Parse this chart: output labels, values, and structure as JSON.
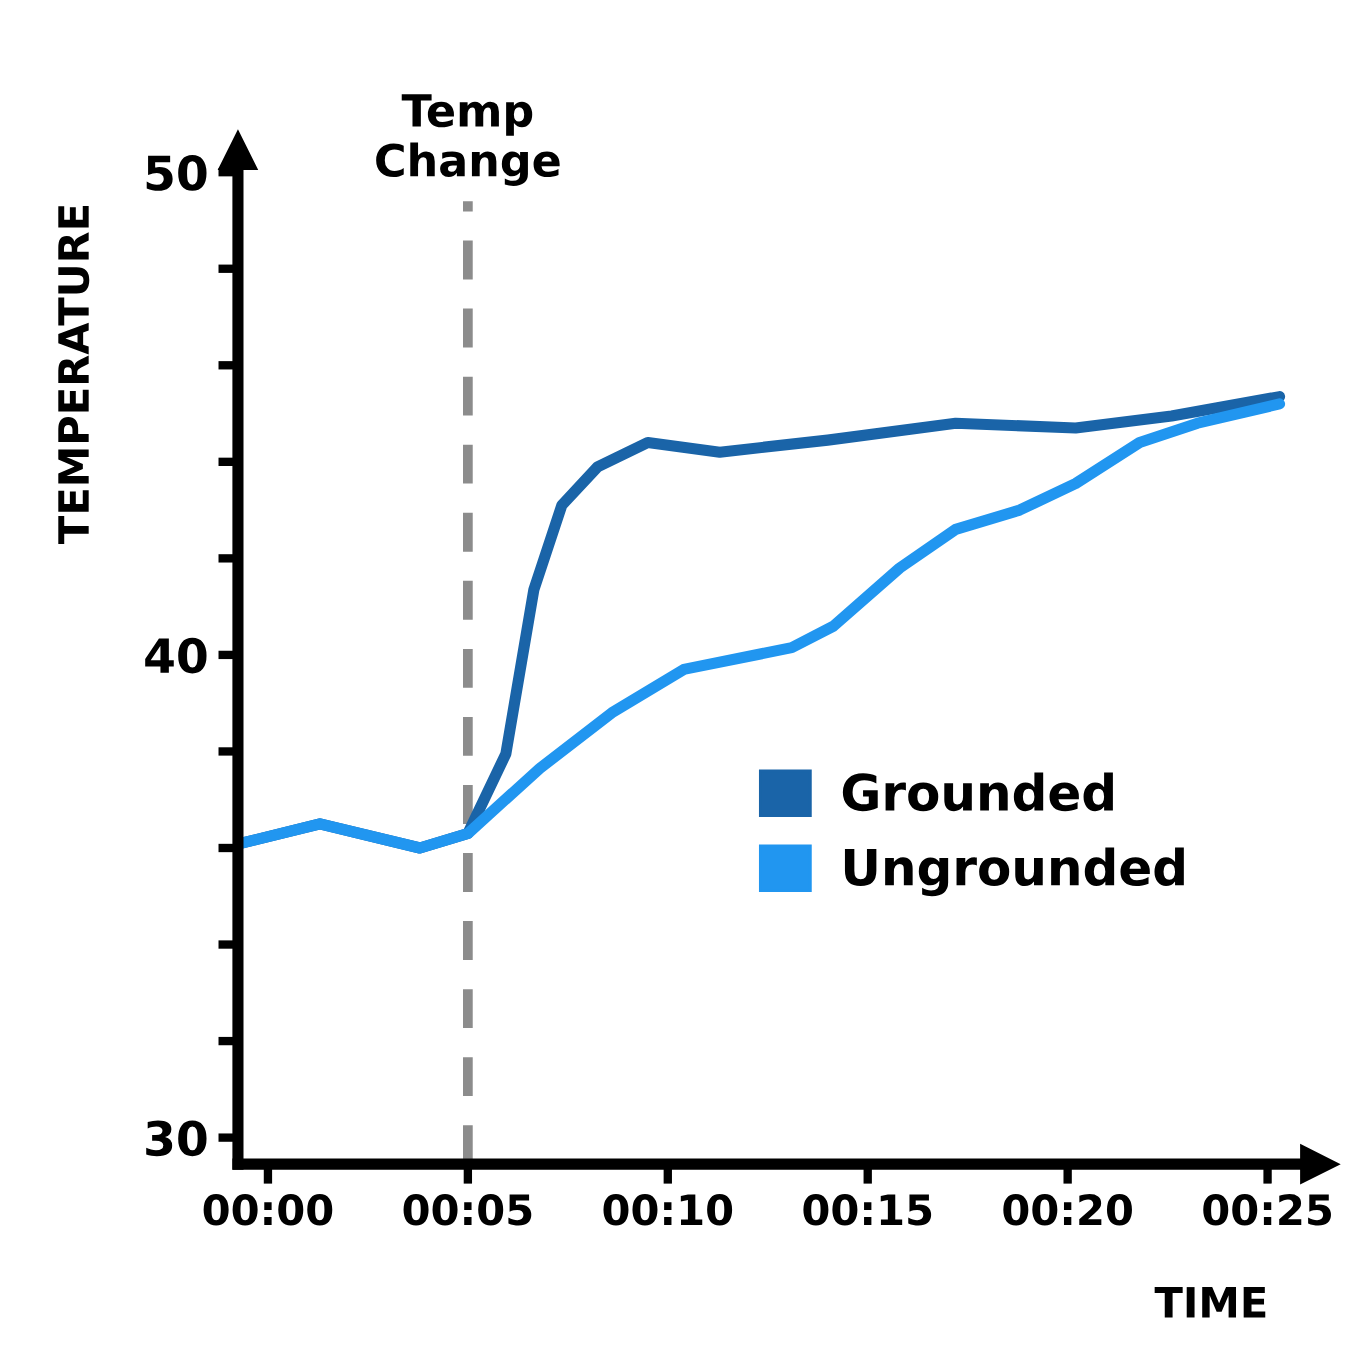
{
  "chart_data": {
    "type": "line",
    "xlabel": "TIME",
    "ylabel": "TEMPERATURE",
    "xlim": [
      -0.75,
      26.3
    ],
    "ylim": [
      29.45,
      50.45
    ],
    "xticks": [
      {
        "value": 0,
        "label": "00:00"
      },
      {
        "value": 5,
        "label": "00:05"
      },
      {
        "value": 10,
        "label": "00:10"
      },
      {
        "value": 15,
        "label": "00:15"
      },
      {
        "value": 20,
        "label": "00:20"
      },
      {
        "value": 25,
        "label": "00:25"
      }
    ],
    "yticks": [
      30,
      {
        "value": 32,
        "label": null
      },
      {
        "value": 34,
        "label": null
      },
      {
        "value": 36,
        "label": null
      },
      {
        "value": 38,
        "label": null
      },
      40,
      {
        "value": 42,
        "label": null
      },
      {
        "value": 44,
        "label": null
      },
      {
        "value": 46,
        "label": null
      },
      {
        "value": 48,
        "label": null
      },
      50
    ],
    "grid": false,
    "legend": "bottom right",
    "marker": "none",
    "line_style": "solid",
    "ref_lines": [
      {
        "axis": "x",
        "value": 5,
        "label": "Temp\nChange",
        "color": "#8c8c8c",
        "line_style": "dashed"
      }
    ],
    "series": [
      {
        "name": "Grounded",
        "color": "#1a64a8",
        "x": [
          -0.66,
          1.3,
          3.8,
          5,
          5.95,
          6.65,
          7.35,
          8.25,
          9.5,
          11.3,
          14.0,
          17.2,
          20.2,
          22.6,
          25.3
        ],
        "values": [
          36.1,
          36.5,
          36.0,
          36.3,
          37.95,
          41.35,
          43.1,
          43.9,
          44.4,
          44.2,
          44.45,
          44.8,
          44.7,
          44.95,
          45.35
        ]
      },
      {
        "name": "Ungrounded",
        "color": "#2196f0",
        "x": [
          -0.66,
          1.3,
          3.8,
          5,
          6.8,
          8.6,
          10.4,
          13.1,
          14.15,
          15.8,
          17.2,
          18.8,
          20.2,
          21.8,
          23.25,
          25.3
        ],
        "values": [
          36.1,
          36.5,
          36.0,
          36.3,
          37.65,
          38.8,
          39.7,
          40.15,
          40.6,
          41.8,
          42.6,
          43.0,
          43.55,
          44.4,
          44.8,
          45.2
        ]
      }
    ]
  }
}
